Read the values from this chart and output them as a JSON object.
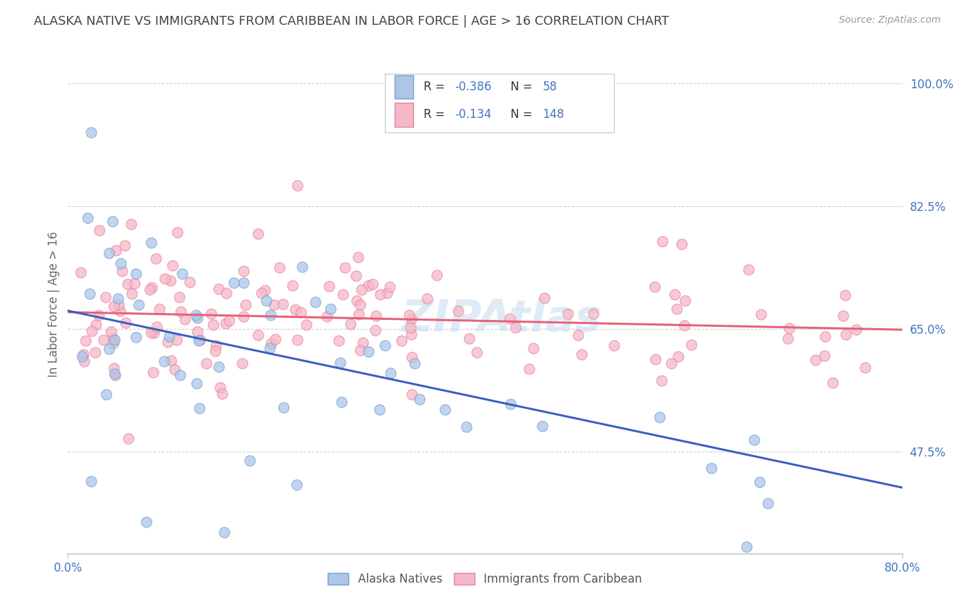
{
  "title": "ALASKA NATIVE VS IMMIGRANTS FROM CARIBBEAN IN LABOR FORCE | AGE > 16 CORRELATION CHART",
  "source": "Source: ZipAtlas.com",
  "ylabel": "In Labor Force | Age > 16",
  "xlim": [
    0.0,
    0.8
  ],
  "ylim": [
    0.33,
    1.04
  ],
  "yticks": [
    0.475,
    0.65,
    0.825,
    1.0
  ],
  "ytick_labels": [
    "47.5%",
    "65.0%",
    "82.5%",
    "100.0%"
  ],
  "xtick_positions": [
    0.0,
    0.8
  ],
  "xtick_labels": [
    "0.0%",
    "80.0%"
  ],
  "blue_R": -0.386,
  "blue_N": 58,
  "pink_R": -0.134,
  "pink_N": 148,
  "blue_color": "#adc6e8",
  "pink_color": "#f5b8c8",
  "blue_edge_color": "#6fa0d0",
  "pink_edge_color": "#e8809a",
  "blue_line_color": "#3b5fc0",
  "pink_line_color": "#e8607a",
  "legend_text_color": "#4472c4",
  "axis_color": "#bbbbbb",
  "grid_color": "#cccccc",
  "watermark_color": "#c8dff0",
  "blue_line_x0": 0.0,
  "blue_line_y0": 0.676,
  "blue_line_x1": 0.8,
  "blue_line_y1": 0.424,
  "pink_line_x0": 0.0,
  "pink_line_y0": 0.674,
  "pink_line_x1": 0.8,
  "pink_line_y1": 0.649
}
